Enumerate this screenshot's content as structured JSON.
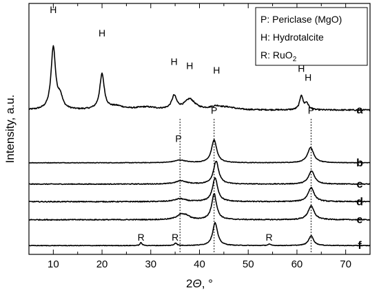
{
  "chart_data": {
    "type": "line",
    "title": "",
    "xlabel": "2Θ, °",
    "ylabel": "Intensity, a.u.",
    "xlim": [
      5,
      75
    ],
    "xticks": [
      10,
      20,
      30,
      40,
      50,
      60,
      70
    ],
    "y_axis_ticklabels": false,
    "grid": false,
    "legend": {
      "placement": "top-right",
      "entries": [
        {
          "key": "P",
          "text": "P: Periclase (MgO)"
        },
        {
          "key": "H",
          "text": "H: Hydrotalcite"
        },
        {
          "key": "R",
          "text": "R: RuO",
          "subscript": "2"
        }
      ]
    },
    "reference_lines": [
      {
        "x": 36.0,
        "style": "dotted"
      },
      {
        "x": 43.0,
        "style": "dotted"
      },
      {
        "x": 62.9,
        "style": "dotted"
      }
    ],
    "series": [
      {
        "name": "a",
        "baseline": 0.7,
        "noise": 0.01,
        "peaks": [
          {
            "x": 10.0,
            "h": 0.95,
            "w": 0.55
          },
          {
            "x": 11.4,
            "h": 0.18,
            "w": 0.6
          },
          {
            "x": 20.0,
            "h": 0.54,
            "w": 0.55
          },
          {
            "x": 23.0,
            "h": 0.05,
            "w": 1.8
          },
          {
            "x": 29.0,
            "h": 0.04,
            "w": 2.5
          },
          {
            "x": 34.8,
            "h": 0.2,
            "w": 0.6
          },
          {
            "x": 38.0,
            "h": 0.16,
            "w": 1.3
          },
          {
            "x": 43.5,
            "h": 0.05,
            "w": 1.5
          },
          {
            "x": 46.0,
            "h": 0.03,
            "w": 1.8
          },
          {
            "x": 60.9,
            "h": 0.22,
            "w": 0.4
          },
          {
            "x": 62.0,
            "h": 0.1,
            "w": 0.45
          }
        ]
      },
      {
        "name": "b",
        "baseline": 0.25,
        "noise": 0.008,
        "peaks": [
          {
            "x": 36.0,
            "h": 0.08,
            "w": 1.4
          },
          {
            "x": 43.0,
            "h": 0.7,
            "w": 0.65
          },
          {
            "x": 62.8,
            "h": 0.47,
            "w": 0.75
          }
        ]
      },
      {
        "name": "c",
        "baseline": 0.25,
        "noise": 0.012,
        "peaks": [
          {
            "x": 36.2,
            "h": 0.1,
            "w": 1.3
          },
          {
            "x": 43.4,
            "h": 0.7,
            "w": 0.65
          },
          {
            "x": 63.0,
            "h": 0.4,
            "w": 0.75
          }
        ]
      },
      {
        "name": "d",
        "baseline": 0.25,
        "noise": 0.014,
        "peaks": [
          {
            "x": 36.0,
            "h": 0.09,
            "w": 1.3
          },
          {
            "x": 43.2,
            "h": 0.72,
            "w": 0.65
          },
          {
            "x": 62.9,
            "h": 0.43,
            "w": 0.75
          }
        ]
      },
      {
        "name": "e",
        "baseline": 0.25,
        "noise": 0.014,
        "peaks": [
          {
            "x": 36.2,
            "h": 0.15,
            "w": 1.1
          },
          {
            "x": 37.4,
            "h": 0.08,
            "w": 0.8
          },
          {
            "x": 43.0,
            "h": 0.8,
            "w": 0.6
          },
          {
            "x": 62.9,
            "h": 0.42,
            "w": 0.75
          }
        ]
      },
      {
        "name": "f",
        "baseline": 0.25,
        "noise": 0.009,
        "peaks": [
          {
            "x": 28.0,
            "h": 0.09,
            "w": 0.25
          },
          {
            "x": 35.1,
            "h": 0.08,
            "w": 0.3
          },
          {
            "x": 43.2,
            "h": 0.7,
            "w": 0.6
          },
          {
            "x": 54.3,
            "h": 0.04,
            "w": 0.35
          },
          {
            "x": 62.9,
            "h": 0.3,
            "w": 0.6
          }
        ]
      }
    ],
    "peak_labels": [
      {
        "text": "H",
        "x": 10.0,
        "y_norm": 0.962
      },
      {
        "text": "H",
        "x": 20.0,
        "y_norm": 0.868
      },
      {
        "text": "H",
        "x": 34.8,
        "y_norm": 0.755
      },
      {
        "text": "H",
        "x": 38.0,
        "y_norm": 0.738
      },
      {
        "text": "H",
        "x": 43.5,
        "y_norm": 0.72
      },
      {
        "text": "H",
        "x": 60.9,
        "y_norm": 0.728
      },
      {
        "text": "H",
        "x": 62.3,
        "y_norm": 0.692
      },
      {
        "text": "P",
        "x": 35.7,
        "y_norm": 0.448
      },
      {
        "text": "P",
        "x": 43.0,
        "y_norm": 0.56
      },
      {
        "text": "P",
        "x": 62.9,
        "y_norm": 0.56
      },
      {
        "text": "R",
        "x": 28.0,
        "y_norm": 0.055
      },
      {
        "text": "R",
        "x": 35.0,
        "y_norm": 0.055
      },
      {
        "text": "R",
        "x": 54.3,
        "y_norm": 0.055
      }
    ]
  }
}
